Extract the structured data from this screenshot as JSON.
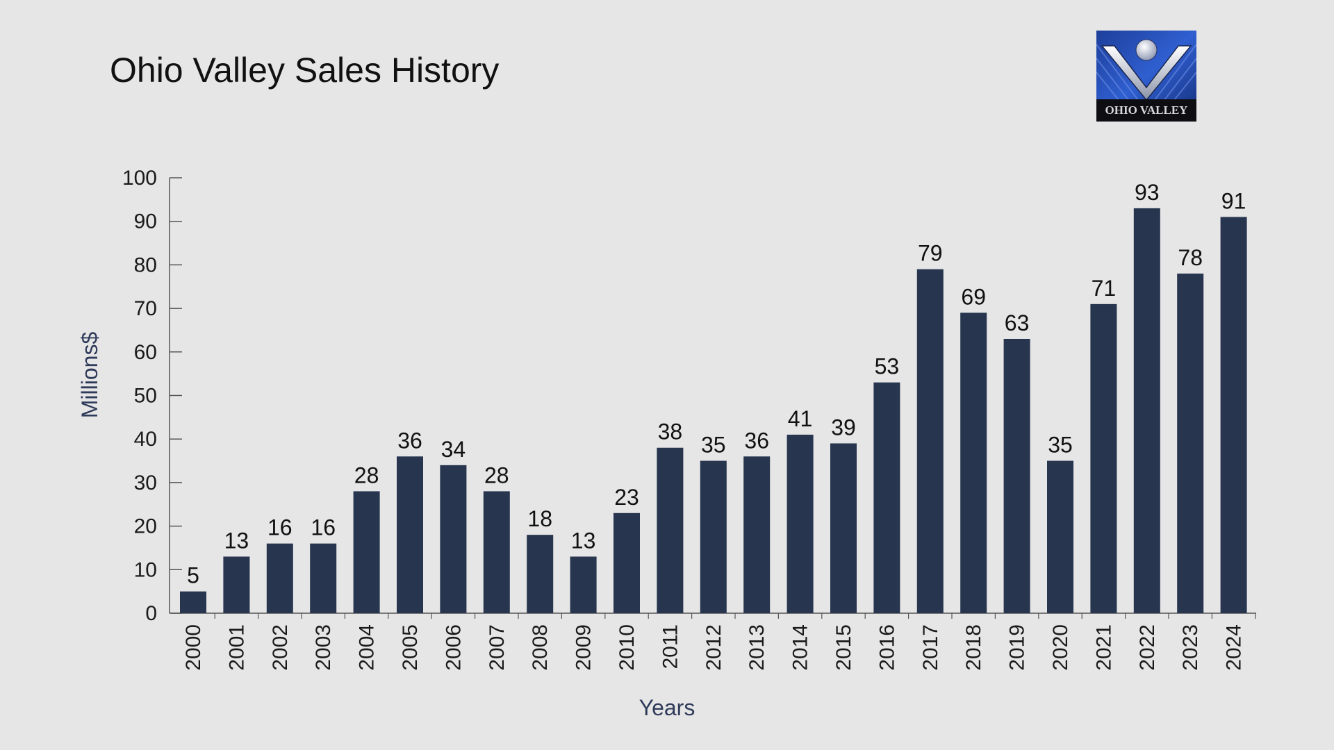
{
  "colors": {
    "background": "#e6e6e6",
    "bar": "#27354f",
    "axis_title": "#2f3b5a",
    "axis_line": "#555555"
  },
  "logo": {
    "text": "OHIO VALLEY",
    "icon": "ohio-valley-logo-icon"
  },
  "chart_data": {
    "type": "bar",
    "title": "Ohio Valley Sales History",
    "xlabel": "Years",
    "ylabel": "Millions$",
    "ylim": [
      0,
      100
    ],
    "yticks": [
      0,
      10,
      20,
      30,
      40,
      50,
      60,
      70,
      80,
      90,
      100
    ],
    "grid": false,
    "data_labels": true,
    "categories": [
      "2000",
      "2001",
      "2002",
      "2003",
      "2004",
      "2005",
      "2006",
      "2007",
      "2008",
      "2009",
      "2010",
      "2011",
      "2012",
      "2013",
      "2014",
      "2015",
      "2016",
      "2017",
      "2018",
      "2019",
      "2020",
      "2021",
      "2022",
      "2023",
      "2024"
    ],
    "values": [
      5,
      13,
      16,
      16,
      28,
      36,
      34,
      28,
      18,
      13,
      23,
      38,
      35,
      36,
      41,
      39,
      53,
      79,
      69,
      63,
      35,
      71,
      93,
      78,
      91
    ]
  }
}
